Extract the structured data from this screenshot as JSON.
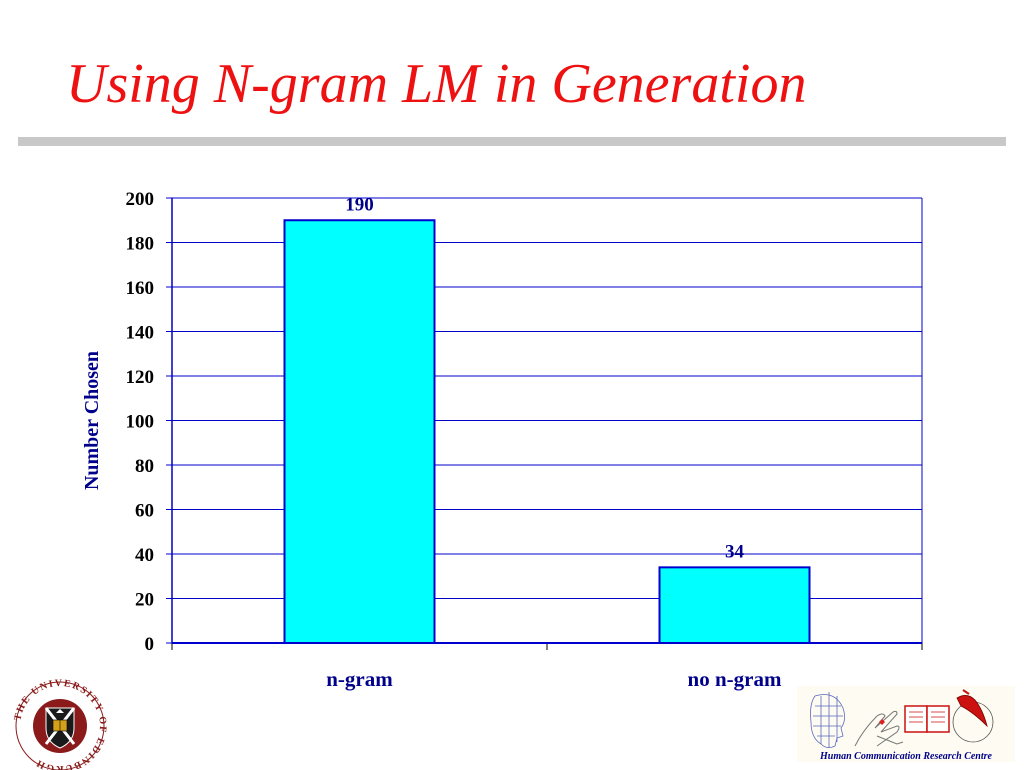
{
  "slide": {
    "title": "Using N-gram LM in Generation",
    "title_color": "#ee1111",
    "rule_color": "#c8c8c8"
  },
  "colors": {
    "axis_text": "#00008b",
    "axis_line": "#0000cc",
    "bar_fill": "#00ffff",
    "bar_stroke": "#0000cc"
  },
  "chart_data": {
    "type": "bar",
    "categories": [
      "n-gram",
      "no n-gram"
    ],
    "values": [
      190,
      34
    ],
    "data_labels": [
      "190",
      "34"
    ],
    "title": "",
    "xlabel": "",
    "ylabel": "Number Chosen",
    "ylim": [
      0,
      200
    ],
    "yticks": [
      0,
      20,
      40,
      60,
      80,
      100,
      120,
      140,
      160,
      180,
      200
    ],
    "grid": true,
    "legend": "none"
  },
  "logos": {
    "university_seal_text": "THE UNIVERSITY OF EDINBURGH",
    "university_seal_icon": "edinburgh-university-crest",
    "hcrc_caption": "Human Communication Research Centre",
    "hcrc_caption_color": "#00008b",
    "hcrc_icon": "hcrc-logo-head-hands-book-quill"
  }
}
